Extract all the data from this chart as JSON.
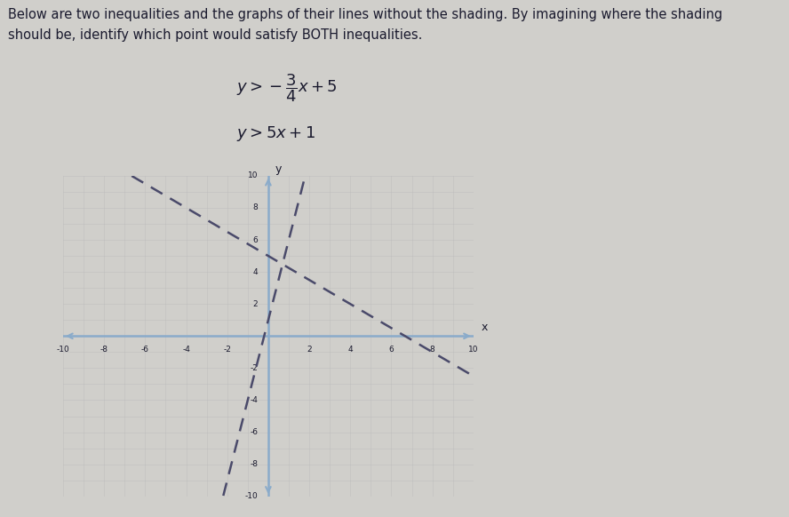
{
  "header1": "Below are two inequalities and the graphs of their lines without the shading. By imagining where the shading",
  "header2": "should be, identify which point would satisfy BOTH inequalities.",
  "eq1_display": "$y > -\\dfrac{3}{4}x + 5$",
  "eq2_display": "$y > 5x + 1$",
  "xlim": [
    -10,
    10
  ],
  "ylim": [
    -10,
    10
  ],
  "bg_color": "#d0cfcb",
  "axis_color": "#8aabca",
  "line1_color": "#4a4a6a",
  "line2_color": "#4a4a6a",
  "grid_color": "#bbbbbb",
  "text_color": "#1a1a2e",
  "line1_slope": -0.75,
  "line1_intercept": 5,
  "line2_slope": 5,
  "line2_intercept": 1,
  "font_size_eq": 13,
  "font_size_title": 10.5
}
